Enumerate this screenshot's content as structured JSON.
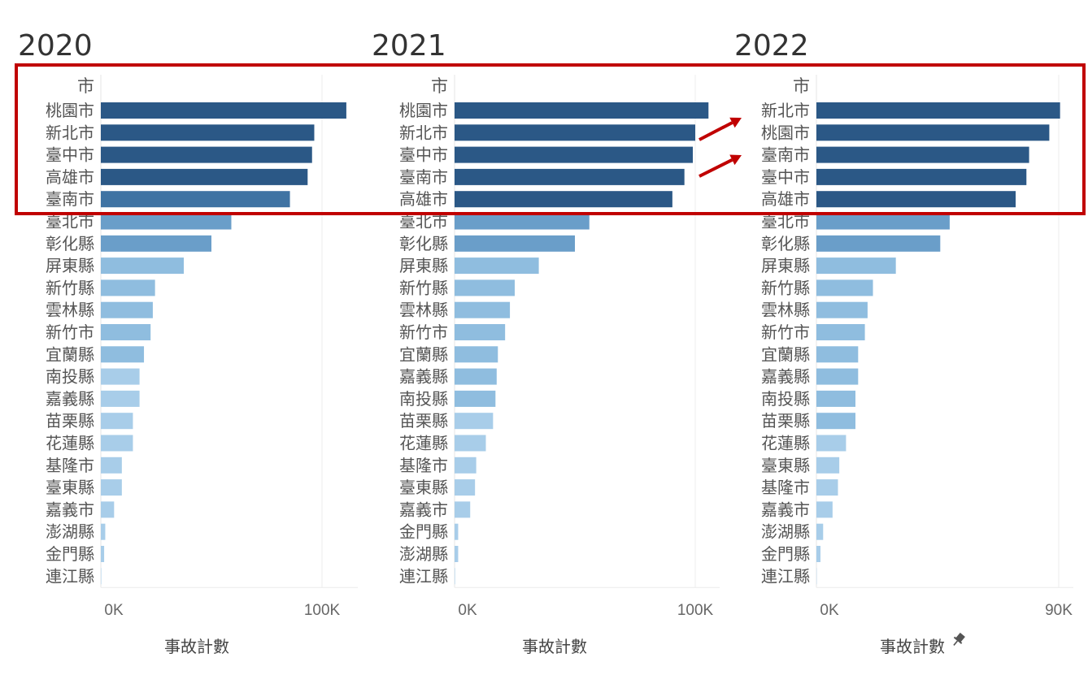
{
  "colors": {
    "highlight_box": "#c00000",
    "arrow": "#c00000",
    "bar_scale": [
      "#2b5886",
      "#3f73a3",
      "#6a9ec9",
      "#8fbddf",
      "#a8cde9"
    ]
  },
  "icons": {
    "pin": "pin-icon"
  },
  "chart_data": [
    {
      "type": "bar",
      "orientation": "horizontal",
      "title": "2020",
      "category_header": "市",
      "xlabel": "事故計數",
      "xlim": [
        0,
        110000
      ],
      "ticks": [
        {
          "value": 0,
          "label": "0K"
        },
        {
          "value": 100000,
          "label": "100K"
        }
      ],
      "categories": [
        "桃園市",
        "新北市",
        "臺中市",
        "高雄市",
        "臺南市",
        "臺北市",
        "彰化縣",
        "屏東縣",
        "新竹縣",
        "雲林縣",
        "新竹市",
        "宜蘭縣",
        "南投縣",
        "嘉義縣",
        "苗栗縣",
        "花蓮縣",
        "基隆市",
        "臺東縣",
        "嘉義市",
        "澎湖縣",
        "金門縣",
        "連江縣"
      ],
      "values": [
        111000,
        96500,
        95500,
        93500,
        85500,
        59000,
        50000,
        37500,
        24500,
        23500,
        22500,
        19500,
        17500,
        17500,
        14500,
        14500,
        9500,
        9500,
        6000,
        2000,
        1500,
        200
      ]
    },
    {
      "type": "bar",
      "orientation": "horizontal",
      "title": "2021",
      "category_header": "市",
      "xlabel": "事故計數",
      "xlim": [
        0,
        110000
      ],
      "ticks": [
        {
          "value": 0,
          "label": "0K"
        },
        {
          "value": 100000,
          "label": "100K"
        }
      ],
      "categories": [
        "桃園市",
        "新北市",
        "臺中市",
        "臺南市",
        "高雄市",
        "臺北市",
        "彰化縣",
        "屏東縣",
        "新竹縣",
        "雲林縣",
        "新竹市",
        "宜蘭縣",
        "嘉義縣",
        "南投縣",
        "苗栗縣",
        "花蓮縣",
        "基隆市",
        "臺東縣",
        "嘉義市",
        "金門縣",
        "澎湖縣",
        "連江縣"
      ],
      "values": [
        105500,
        100000,
        99000,
        95500,
        90500,
        56000,
        50000,
        35000,
        25000,
        23000,
        21000,
        18000,
        17500,
        17000,
        16000,
        13000,
        9000,
        8500,
        6500,
        1500,
        1500,
        200
      ]
    },
    {
      "type": "bar",
      "orientation": "horizontal",
      "title": "2022",
      "category_header": "市",
      "xlabel": "事故計數",
      "xlim": [
        0,
        98000
      ],
      "ticks": [
        {
          "value": 0,
          "label": "0K"
        },
        {
          "value": 90000,
          "label": "90K"
        }
      ],
      "categories": [
        "新北市",
        "桃園市",
        "臺南市",
        "臺中市",
        "高雄市",
        "臺北市",
        "彰化縣",
        "屏東縣",
        "新竹縣",
        "雲林縣",
        "新竹市",
        "宜蘭縣",
        "嘉義縣",
        "南投縣",
        "苗栗縣",
        "花蓮縣",
        "臺東縣",
        "基隆市",
        "嘉義市",
        "澎湖縣",
        "金門縣",
        "連江縣"
      ],
      "values": [
        90500,
        86500,
        79000,
        78000,
        74000,
        49500,
        46000,
        29500,
        21000,
        19000,
        18000,
        15500,
        15500,
        14500,
        14500,
        11000,
        8500,
        8000,
        6000,
        2500,
        1500,
        100
      ]
    }
  ]
}
